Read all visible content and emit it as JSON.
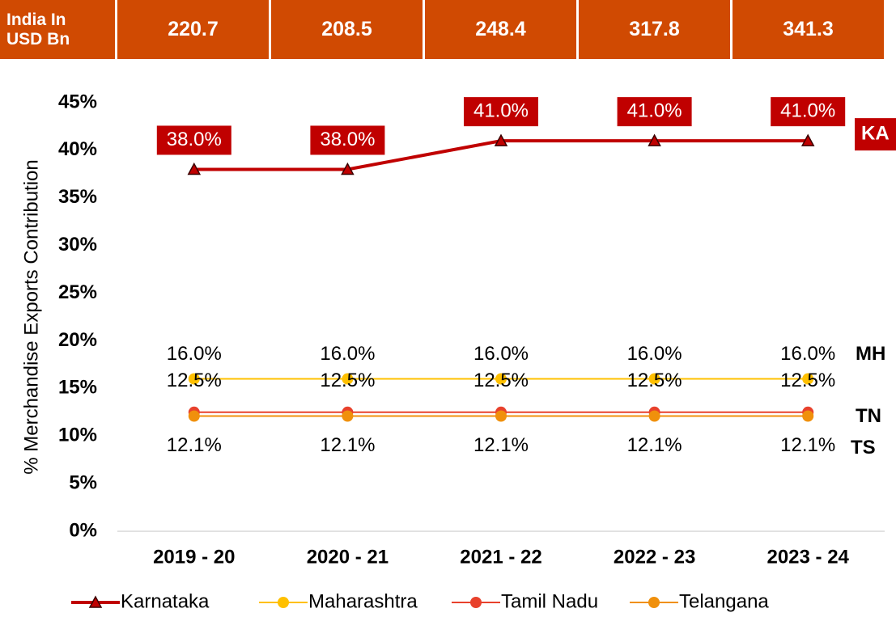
{
  "chart_data": {
    "type": "line",
    "header": {
      "label": "India In USD Bn",
      "values": [
        220.7,
        208.5,
        248.4,
        317.8,
        341.3
      ]
    },
    "y_label": "% Merchandise Exports Contribution",
    "categories": [
      "2019 - 20",
      "2020 - 21",
      "2021 - 22",
      "2022 - 23",
      "2023 - 24"
    ],
    "ylim": [
      0,
      45
    ],
    "yticks": [
      {
        "value": 0,
        "label": "0%"
      },
      {
        "value": 5,
        "label": "5%"
      },
      {
        "value": 10,
        "label": "10%"
      },
      {
        "value": 15,
        "label": "15%"
      },
      {
        "value": 20,
        "label": "20%"
      },
      {
        "value": 25,
        "label": "25%"
      },
      {
        "value": 30,
        "label": "30%"
      },
      {
        "value": 35,
        "label": "35%"
      },
      {
        "value": 40,
        "label": "40%"
      },
      {
        "value": 45,
        "label": "45%"
      }
    ],
    "grid": false,
    "legend": "bottom",
    "series": [
      {
        "name": "Karnataka",
        "short_name": "KA",
        "color": "#c00000",
        "marker": "triangle",
        "values": [
          38.0,
          38.0,
          41.0,
          41.0,
          41.0
        ],
        "value_labels": [
          "38.0%",
          "38.0%",
          "41.0%",
          "41.0%",
          "41.0%"
        ]
      },
      {
        "name": "Maharashtra",
        "short_name": "MH",
        "color": "#ffc000",
        "marker": "circle",
        "values": [
          16.0,
          16.0,
          16.0,
          16.0,
          16.0
        ],
        "value_labels": [
          "16.0%",
          "16.0%",
          "16.0%",
          "16.0%",
          "16.0%"
        ]
      },
      {
        "name": "Tamil Nadu",
        "short_name": "TN",
        "color": "#e8412c",
        "marker": "circle",
        "values": [
          12.5,
          12.5,
          12.5,
          12.5,
          12.5
        ],
        "value_labels": [
          "12.5%",
          "12.5%",
          "12.5%",
          "12.5%",
          "12.5%"
        ]
      },
      {
        "name": "Telangana",
        "short_name": "TS",
        "color": "#f0900c",
        "marker": "circle",
        "values": [
          12.1,
          12.1,
          12.1,
          12.1,
          12.1
        ],
        "value_labels": [
          "12.1%",
          "12.1%",
          "12.1%",
          "12.1%",
          "12.1%"
        ]
      }
    ]
  }
}
